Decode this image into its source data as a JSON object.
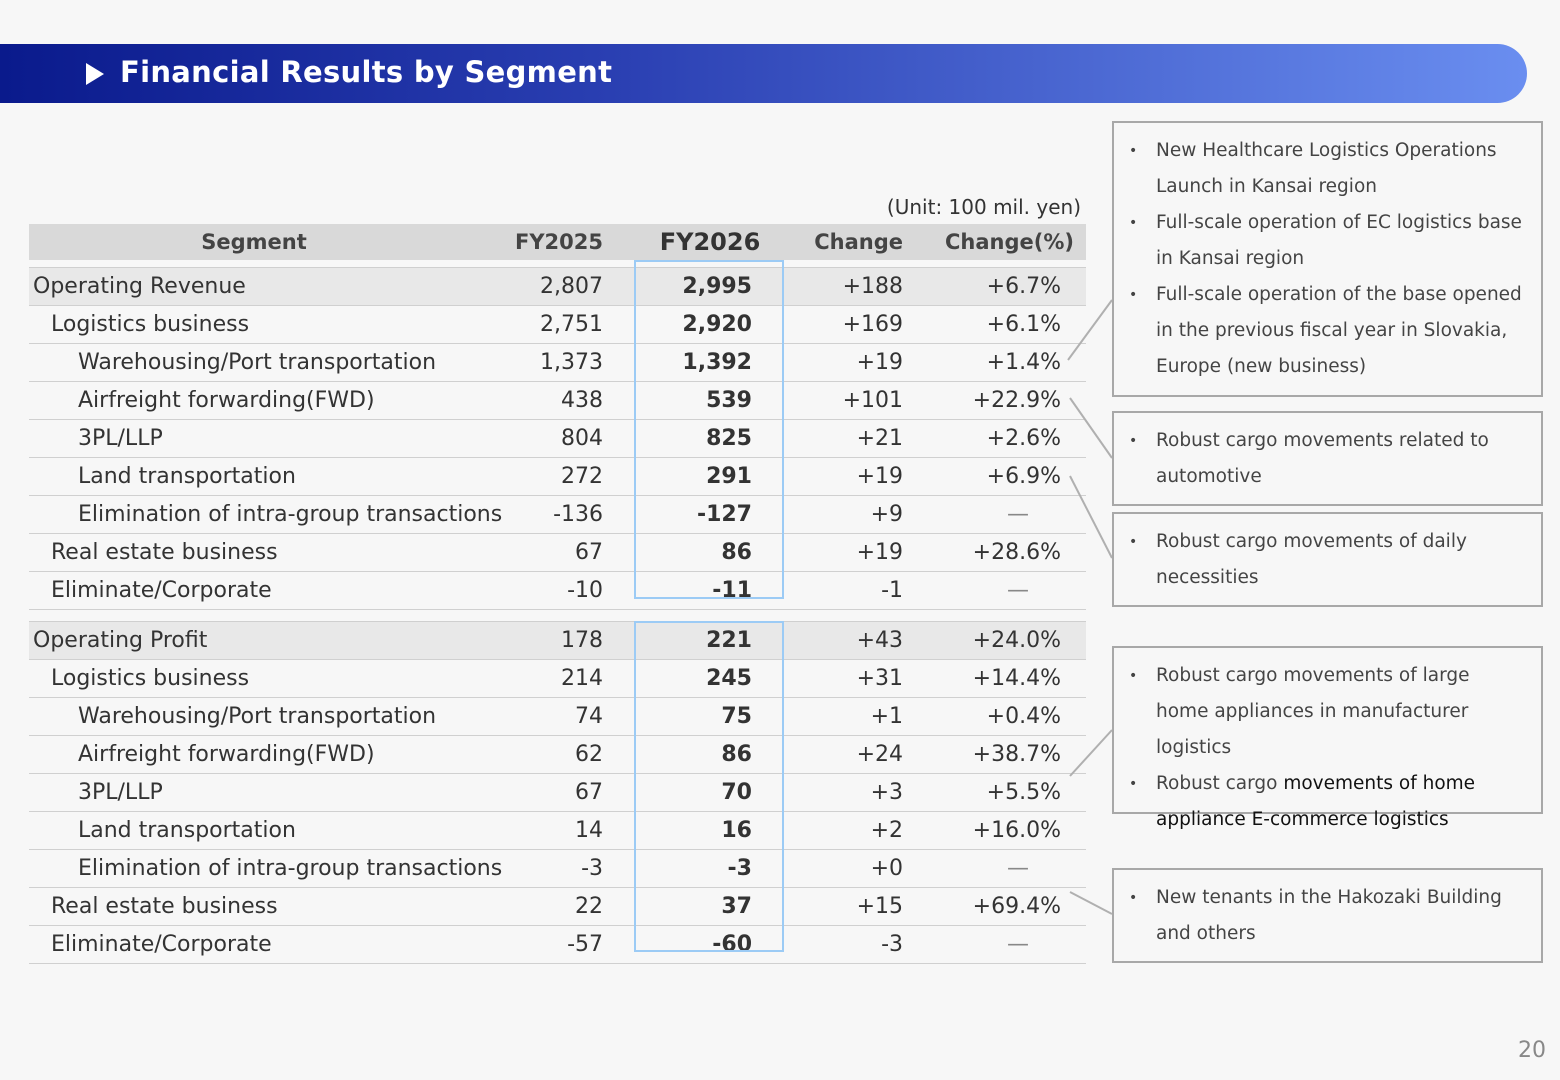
{
  "title": "Financial Results by Segment",
  "unit": "(Unit: 100 mil. yen)",
  "columns": [
    "Segment",
    "FY2025",
    "FY2026",
    "Change",
    "Change(%)"
  ],
  "revenue_rows": [
    {
      "segment": "Operating Revenue",
      "fy2025": "2,807",
      "fy2026": "2,995",
      "change": "+188",
      "pct": "+6.7%"
    },
    {
      "segment": "Logistics business",
      "fy2025": "2,751",
      "fy2026": "2,920",
      "change": "+169",
      "pct": "+6.1%"
    },
    {
      "segment": "Warehousing/Port transportation",
      "fy2025": "1,373",
      "fy2026": "1,392",
      "change": "+19",
      "pct": "+1.4%"
    },
    {
      "segment": "Airfreight forwarding(FWD)",
      "fy2025": "438",
      "fy2026": "539",
      "change": "+101",
      "pct": "+22.9%"
    },
    {
      "segment": "3PL/LLP",
      "fy2025": "804",
      "fy2026": "825",
      "change": "+21",
      "pct": "+2.6%"
    },
    {
      "segment": "Land transportation",
      "fy2025": "272",
      "fy2026": "291",
      "change": "+19",
      "pct": "+6.9%"
    },
    {
      "segment": "Elimination of intra-group transactions",
      "fy2025": "-136",
      "fy2026": "-127",
      "change": "+9",
      "pct": "—"
    },
    {
      "segment": "Real estate business",
      "fy2025": "67",
      "fy2026": "86",
      "change": "+19",
      "pct": "+28.6%"
    },
    {
      "segment": "Eliminate/Corporate",
      "fy2025": "-10",
      "fy2026": "-11",
      "change": "-1",
      "pct": "—"
    }
  ],
  "profit_rows": [
    {
      "segment": "Operating Profit",
      "fy2025": "178",
      "fy2026": "221",
      "change": "+43",
      "pct": "+24.0%"
    },
    {
      "segment": "Logistics business",
      "fy2025": "214",
      "fy2026": "245",
      "change": "+31",
      "pct": "+14.4%"
    },
    {
      "segment": "Warehousing/Port transportation",
      "fy2025": "74",
      "fy2026": "75",
      "change": "+1",
      "pct": "+0.4%"
    },
    {
      "segment": "Airfreight forwarding(FWD)",
      "fy2025": "62",
      "fy2026": "86",
      "change": "+24",
      "pct": "+38.7%"
    },
    {
      "segment": "3PL/LLP",
      "fy2025": "67",
      "fy2026": "70",
      "change": "+3",
      "pct": "+5.5%"
    },
    {
      "segment": "Land transportation",
      "fy2025": "14",
      "fy2026": "16",
      "change": "+2",
      "pct": "+16.0%"
    },
    {
      "segment": "Elimination of intra-group transactions",
      "fy2025": "-3",
      "fy2026": "-3",
      "change": "+0",
      "pct": "—"
    },
    {
      "segment": "Real estate business",
      "fy2025": "22",
      "fy2026": "37",
      "change": "+15",
      "pct": "+69.4%"
    },
    {
      "segment": "Eliminate/Corporate",
      "fy2025": "-57",
      "fy2026": "-60",
      "change": "-3",
      "pct": "—"
    }
  ],
  "notes": [
    [
      "New Healthcare Logistics Operations Launch in Kansai region",
      "Full-scale operation of EC logistics  base in Kansai region",
      "Full-scale operation of the base opened in the previous fiscal year in Slovakia, Europe (new business)"
    ],
    [
      "Robust cargo movements related to automotive"
    ],
    [
      "Robust cargo movements of daily necessities"
    ],
    [
      "Robust cargo movements of large home appliances in manufacturer logistics",
      "Robust cargo movements of home appliance E-commerce logistics"
    ],
    [
      "New tenants in the Hakozaki Building and others"
    ]
  ],
  "note4_item2_prefix": "Robust cargo ",
  "note4_item2_dark": "movements of home appliance E-commerce logistics",
  "page_number": "20"
}
